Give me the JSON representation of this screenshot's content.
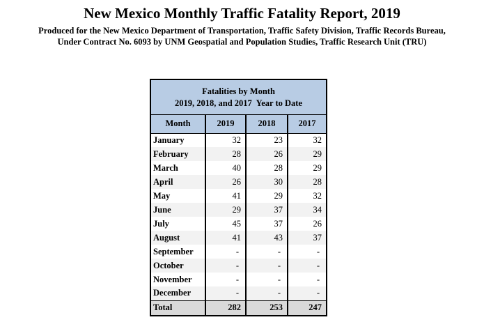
{
  "header": {
    "title": "New Mexico Monthly Traffic Fatality Report, 2019",
    "subtitle_line1": "Produced for the New Mexico Department of Transportation, Traffic Safety Division, Traffic Records Bureau,",
    "subtitle_line2": "Under Contract No. 6093 by UNM Geospatial and Population Studies, Traffic Research Unit (TRU)"
  },
  "table": {
    "caption_line1": "Fatalities by Month",
    "caption_line2": "2019, 2018, and 2017  Year to Date",
    "columns": [
      "Month",
      "2019",
      "2018",
      "2017"
    ],
    "rows": [
      [
        "January",
        "32",
        "23",
        "32"
      ],
      [
        "February",
        "28",
        "26",
        "29"
      ],
      [
        "March",
        "40",
        "28",
        "29"
      ],
      [
        "April",
        "26",
        "30",
        "28"
      ],
      [
        "May",
        "41",
        "29",
        "32"
      ],
      [
        "June",
        "29",
        "37",
        "34"
      ],
      [
        "July",
        "45",
        "37",
        "26"
      ],
      [
        "August",
        "41",
        "43",
        "37"
      ],
      [
        "September",
        "-",
        "-",
        "-"
      ],
      [
        "October",
        "-",
        "-",
        "-"
      ],
      [
        "November",
        "-",
        "-",
        "-"
      ],
      [
        "December",
        "-",
        "-",
        "-"
      ]
    ],
    "total": [
      "Total",
      "282",
      "253",
      "247"
    ]
  }
}
